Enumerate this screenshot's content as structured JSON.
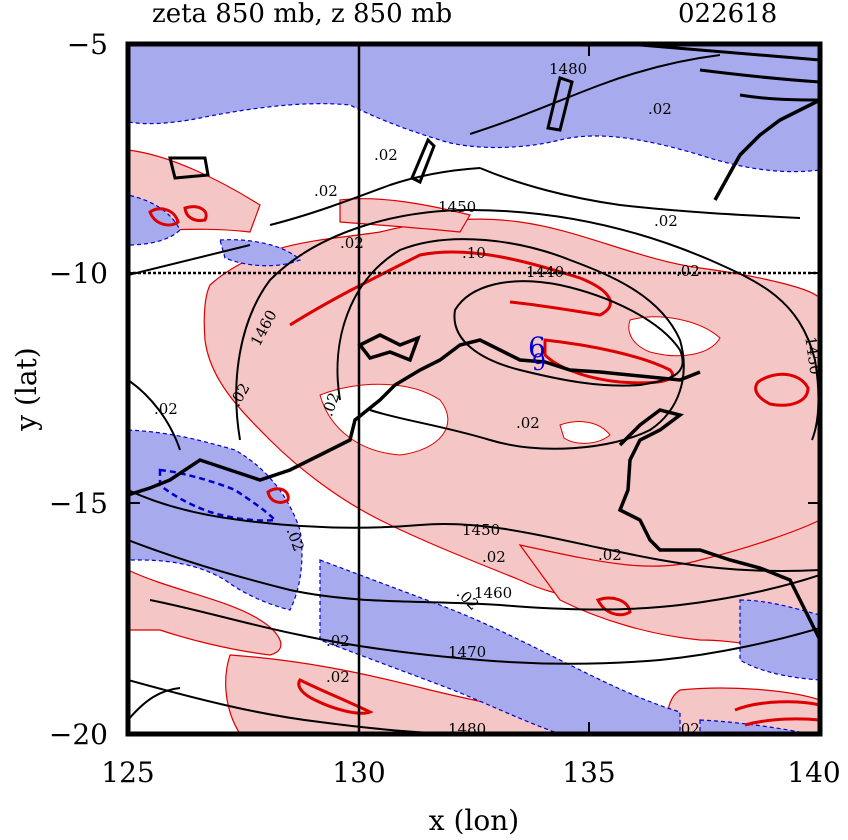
{
  "title_left": "zeta 850 mb, z 850 mb",
  "title_right": "022618",
  "chart_data": {
    "type": "contour",
    "xlabel": "x (lon)",
    "ylabel": "y (lat)",
    "xlim": [
      125,
      140
    ],
    "ylim": [
      -20,
      -5
    ],
    "x_ticks": [
      "125",
      "130",
      "135",
      "140"
    ],
    "y_ticks": [
      "−5",
      "−10",
      "−15",
      "−20"
    ],
    "colors": {
      "positive_fill": "#f5c6c6",
      "negative_fill": "#a8aaee",
      "positive_line": "#dd0000",
      "negative_line": "#0000cc",
      "height_line": "#000000"
    },
    "reference_lines": {
      "lon": 130,
      "lat": -10
    },
    "contour_labels": [
      "1480",
      "1450",
      "1440",
      "1460",
      "1450",
      "1450",
      "1460",
      "1470",
      "1480",
      ".02",
      ".02",
      ".02",
      ".02",
      ".02",
      ".02",
      ".02",
      ".02",
      ".02",
      ".02",
      ".02",
      ".02",
      ".02",
      ".02",
      ".02",
      ".02",
      ".02",
      ".10",
      "6",
      "9"
    ]
  }
}
